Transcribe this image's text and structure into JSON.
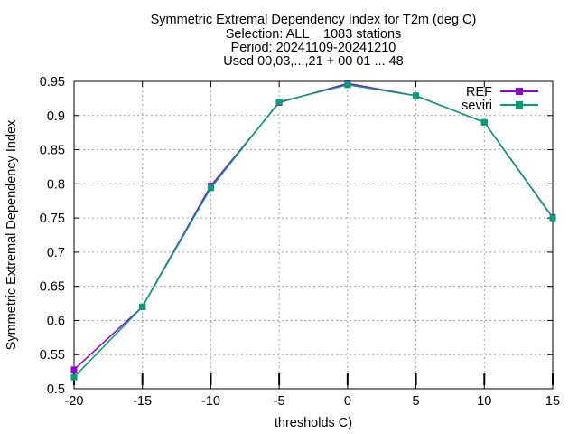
{
  "chart_data": {
    "type": "line",
    "title_lines": [
      "Symmetric Extremal Dependency Index  for T2m (deg C)",
      "Selection: ALL    1083 stations",
      "Period: 20241109-20241210",
      "Used 00,03,...,21 + 00 01 ... 48"
    ],
    "xlabel": "thresholds C)",
    "ylabel": "Symmetric Extremal Dependency Index",
    "x": [
      -20,
      -15,
      -10,
      -5,
      0,
      5,
      10,
      15
    ],
    "xlim": [
      -20,
      15
    ],
    "ylim": [
      0.5,
      0.95
    ],
    "xticks": [
      -20,
      -15,
      -10,
      -5,
      0,
      5,
      10,
      15
    ],
    "yticks": [
      0.5,
      0.55,
      0.6,
      0.65,
      0.7,
      0.75,
      0.8,
      0.85,
      0.9,
      0.95
    ],
    "xtick_labels": [
      "-20",
      "-15",
      "-10",
      "-5",
      "0",
      "5",
      "10",
      "15"
    ],
    "ytick_labels": [
      "0.5",
      "0.55",
      "0.6",
      "0.65",
      "0.7",
      "0.75",
      "0.8",
      "0.85",
      "0.9",
      "0.95"
    ],
    "grid": true,
    "legend_position": "top-right",
    "series": [
      {
        "name": "REF",
        "color": "#9400d3",
        "values": [
          0.528,
          0.62,
          0.797,
          0.919,
          0.947,
          0.929,
          0.89,
          0.751
        ]
      },
      {
        "name": "seviri",
        "color": "#009e73",
        "values": [
          0.517,
          0.62,
          0.794,
          0.92,
          0.945,
          0.929,
          0.89,
          0.75
        ]
      }
    ]
  }
}
